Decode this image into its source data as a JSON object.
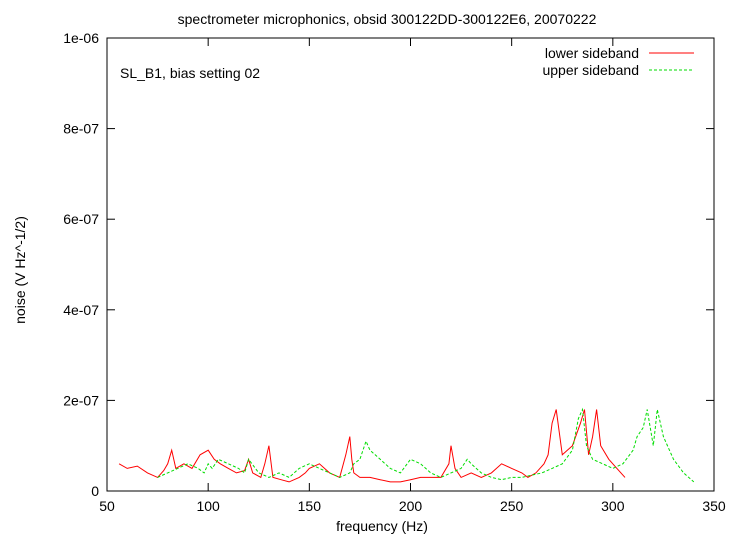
{
  "chart_data": {
    "type": "line",
    "title": "spectrometer microphonics, obsid 300122DD-300122E6, 20070222",
    "annotation": "SL_B1, bias setting 02",
    "xlabel": "frequency (Hz)",
    "ylabel": "noise (V Hz^-1/2)",
    "xlim": [
      50,
      350
    ],
    "ylim": [
      0,
      1e-06
    ],
    "x_ticks": [
      50,
      100,
      150,
      200,
      250,
      300,
      350
    ],
    "x_tick_labels": [
      "50",
      "100",
      "150",
      "200",
      "250",
      "300",
      "350"
    ],
    "y_ticks": [
      0,
      2e-07,
      4e-07,
      6e-07,
      8e-07,
      1e-06
    ],
    "y_tick_labels": [
      "0",
      "2e-07",
      "4e-07",
      "6e-07",
      "8e-07",
      "1e-06"
    ],
    "grid": false,
    "legend_position": "top-right",
    "series": [
      {
        "name": "lower sideband",
        "color": "#ff0000",
        "dashed": false,
        "x": [
          56,
          60,
          65,
          70,
          75,
          78,
          80,
          82,
          84,
          88,
          92,
          96,
          100,
          103,
          106,
          110,
          114,
          118,
          120,
          122,
          126,
          128,
          130,
          132,
          136,
          140,
          145,
          148,
          150,
          155,
          160,
          165,
          168,
          170,
          171,
          172,
          175,
          180,
          185,
          190,
          195,
          200,
          205,
          210,
          215,
          219,
          220,
          222,
          225,
          230,
          235,
          240,
          245,
          250,
          255,
          258,
          262,
          266,
          268,
          270,
          272,
          275,
          280,
          284,
          286,
          288,
          290,
          292,
          294,
          298,
          302,
          306
        ],
        "y": [
          6e-08,
          5e-08,
          5.5e-08,
          4e-08,
          3e-08,
          4.5e-08,
          6e-08,
          9e-08,
          5e-08,
          6e-08,
          5e-08,
          8e-08,
          9e-08,
          7e-08,
          6e-08,
          5e-08,
          4e-08,
          4.5e-08,
          7e-08,
          4e-08,
          3e-08,
          6e-08,
          1e-07,
          3e-08,
          2.5e-08,
          2e-08,
          3e-08,
          4e-08,
          5e-08,
          6e-08,
          4e-08,
          3e-08,
          8e-08,
          1.2e-07,
          7e-08,
          4e-08,
          3e-08,
          3e-08,
          2.5e-08,
          2e-08,
          2e-08,
          2.5e-08,
          3e-08,
          3e-08,
          3e-08,
          6e-08,
          1e-07,
          5e-08,
          3e-08,
          4e-08,
          3e-08,
          4e-08,
          6e-08,
          5e-08,
          4e-08,
          3e-08,
          4e-08,
          6e-08,
          8e-08,
          1.5e-07,
          1.8e-07,
          8e-08,
          1e-07,
          1.5e-07,
          1.8e-07,
          8e-08,
          1.2e-07,
          1.8e-07,
          1e-07,
          7e-08,
          5e-08,
          3e-08
        ]
      },
      {
        "name": "upper sideband",
        "color": "#00dd00",
        "dashed": true,
        "x": [
          75,
          80,
          85,
          90,
          95,
          98,
          100,
          102,
          105,
          110,
          115,
          118,
          120,
          125,
          130,
          135,
          140,
          145,
          150,
          155,
          160,
          165,
          170,
          172,
          175,
          178,
          180,
          185,
          190,
          195,
          200,
          205,
          210,
          215,
          220,
          225,
          228,
          230,
          235,
          240,
          245,
          250,
          255,
          260,
          265,
          270,
          275,
          280,
          283,
          285,
          287,
          290,
          295,
          300,
          305,
          310,
          312,
          315,
          317,
          320,
          322,
          325,
          330,
          335,
          340
        ],
        "y": [
          3e-08,
          4e-08,
          5e-08,
          6e-08,
          5e-08,
          4e-08,
          6e-08,
          5e-08,
          7e-08,
          6e-08,
          5e-08,
          4e-08,
          7e-08,
          4e-08,
          3e-08,
          4e-08,
          3e-08,
          5e-08,
          6e-08,
          5e-08,
          4e-08,
          3e-08,
          4e-08,
          6e-08,
          7e-08,
          1.1e-07,
          9e-08,
          7e-08,
          5e-08,
          4e-08,
          7e-08,
          6e-08,
          4e-08,
          3e-08,
          4e-08,
          5e-08,
          7e-08,
          6e-08,
          4e-08,
          3e-08,
          2.5e-08,
          3e-08,
          3e-08,
          3.5e-08,
          4e-08,
          5e-08,
          6e-08,
          9e-08,
          1.6e-07,
          1.8e-07,
          1e-07,
          7e-08,
          6e-08,
          5e-08,
          6e-08,
          9e-08,
          1.2e-07,
          1.4e-07,
          1.8e-07,
          1e-07,
          1.8e-07,
          1.2e-07,
          7e-08,
          4e-08,
          2e-08
        ]
      }
    ]
  }
}
